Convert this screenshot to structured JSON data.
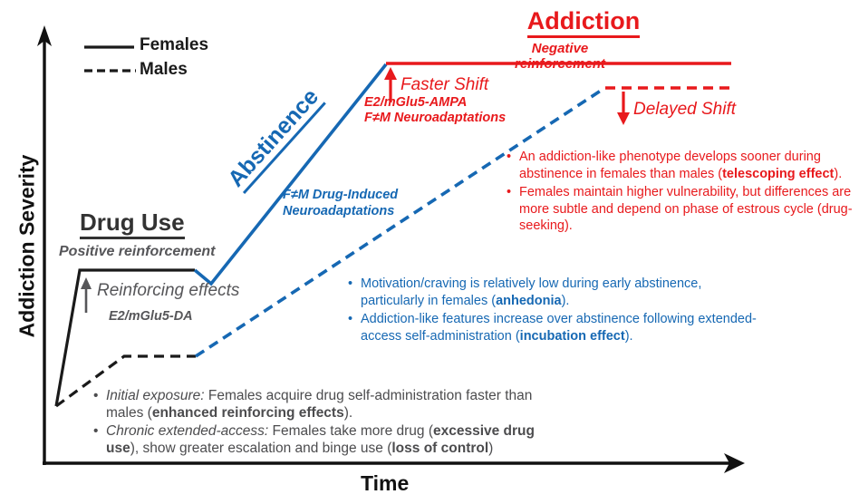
{
  "axes": {
    "y_label": "Addiction Severity",
    "x_label": "Time"
  },
  "legend": {
    "females": "Females",
    "males": "Males"
  },
  "colors": {
    "red": "#e8191c",
    "blue": "#1668b3",
    "gray": "#565659",
    "black": "#1a1a1a"
  },
  "phases": {
    "drug_use": {
      "title": "Drug Use",
      "subtitle": "Positive reinforcement",
      "arrow_label": "Reinforcing effects",
      "mechanism": "E2/mGlu5-DA"
    },
    "abstinence": {
      "title": "Abstinence",
      "mechanism_line1": "F≠M Drug-Induced",
      "mechanism_line2": "Neuroadaptations"
    },
    "addiction": {
      "title": "Addiction",
      "subtitle": "Negative reinforcement",
      "faster_shift_label": "Faster Shift",
      "mechanism_line1": "E2/mGlu5-AMPA",
      "mechanism_line2": "F≠M Neuroadaptations",
      "delayed_shift_label": "Delayed Shift"
    }
  },
  "notes": {
    "red": [
      {
        "segments": [
          {
            "t": "An addiction-like phenotype develops sooner during abstinence in females than males ("
          },
          {
            "t": "telescoping effect",
            "b": true
          },
          {
            "t": ")."
          }
        ]
      },
      {
        "segments": [
          {
            "t": "Females maintain higher vulnerability, but differences are more subtle and depend on phase of estrous cycle (drug-seeking)."
          }
        ]
      }
    ],
    "blue": [
      {
        "segments": [
          {
            "t": "Motivation/craving is relatively low during early abstinence, particularly in females ("
          },
          {
            "t": "anhedonia",
            "b": true
          },
          {
            "t": ")."
          }
        ]
      },
      {
        "segments": [
          {
            "t": "Addiction-like features increase over abstinence following extended-access self-administration ("
          },
          {
            "t": "incubation effect",
            "b": true
          },
          {
            "t": ")."
          }
        ]
      }
    ],
    "gray": [
      {
        "segments": [
          {
            "t": "Initial exposure:",
            "i": true
          },
          {
            "t": " Females acquire drug self-administration faster than males ("
          },
          {
            "t": "enhanced reinforcing effects",
            "b": true
          },
          {
            "t": ")."
          }
        ]
      },
      {
        "segments": [
          {
            "t": "Chronic extended-access:",
            "i": true
          },
          {
            "t": " Females take more drug ("
          },
          {
            "t": "excessive drug use",
            "b": true
          },
          {
            "t": "), show greater escalation and binge use ("
          },
          {
            "t": "loss of control",
            "b": true
          },
          {
            "t": ")"
          }
        ]
      }
    ]
  }
}
